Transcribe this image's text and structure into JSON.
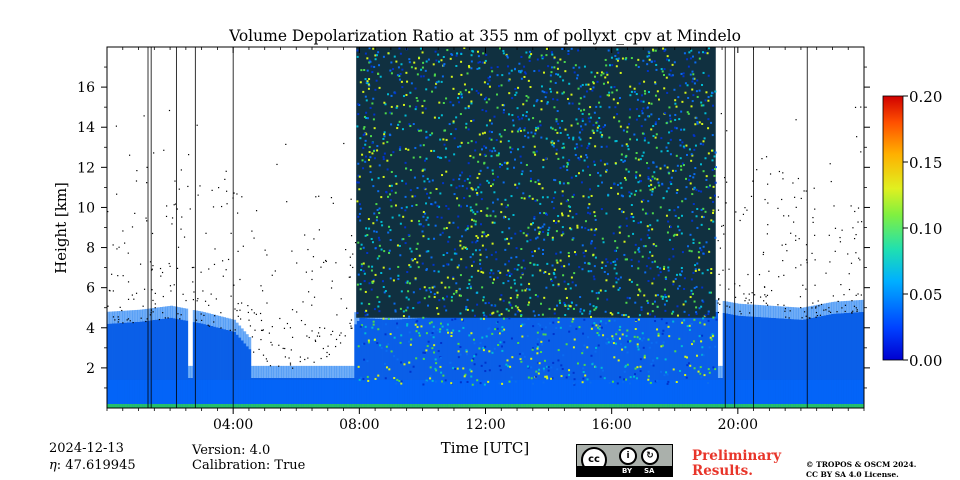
{
  "chart_data": {
    "type": "heatmap",
    "title": "Volume Depolarization Ratio at 355 nm of pollyxt_cpv at Mindelo",
    "xlabel": "Time [UTC]",
    "ylabel": "Height [km]",
    "x_unit": "hours UTC",
    "xlim": [
      0,
      24
    ],
    "ylim": [
      0,
      18
    ],
    "x_ticks": [
      4,
      8,
      12,
      16,
      20
    ],
    "x_tick_labels": [
      "04:00",
      "08:00",
      "12:00",
      "16:00",
      "20:00"
    ],
    "y_ticks": [
      2,
      4,
      6,
      8,
      10,
      12,
      14,
      16
    ],
    "y_tick_labels": [
      "2",
      "4",
      "6",
      "8",
      "10",
      "12",
      "14",
      "16"
    ],
    "colorbar": {
      "range": [
        0.0,
        0.2
      ],
      "ticks": [
        "0.00",
        "0.05",
        "0.10",
        "0.15",
        "0.20"
      ],
      "colormap": "jet",
      "colors": [
        "#0033cc",
        "#0a6cf0",
        "#00bcd4",
        "#4cd94c",
        "#d6f51a",
        "#ffcc00",
        "#ff6a00",
        "#e01010"
      ]
    },
    "background_color": "#ffffff",
    "noise_region": {
      "start_hour": 7.9,
      "end_hour": 19.3,
      "top_km": 18
    },
    "gaps_hours": [
      [
        2.5,
        2.7
      ],
      [
        4.5,
        7.8
      ],
      [
        6.55,
        6.75
      ],
      [
        19.35,
        19.45
      ]
    ],
    "aerosol_layer_top_km": [
      [
        0,
        4.2
      ],
      [
        1,
        4.3
      ],
      [
        2,
        4.5
      ],
      [
        3,
        4.2
      ],
      [
        4,
        3.8
      ],
      [
        5,
        2.0
      ],
      [
        6,
        2.0
      ],
      [
        7,
        2.5
      ],
      [
        8,
        4.5
      ],
      [
        9,
        4.4
      ],
      [
        10,
        4.5
      ],
      [
        12,
        4.6
      ],
      [
        14,
        4.5
      ],
      [
        16,
        4.5
      ],
      [
        18,
        4.6
      ],
      [
        19.3,
        4.8
      ],
      [
        20,
        4.6
      ],
      [
        21,
        4.5
      ],
      [
        22,
        4.4
      ],
      [
        23,
        4.7
      ],
      [
        24,
        4.8
      ]
    ]
  },
  "footer": {
    "date": "2024-12-13",
    "eta_label": "η",
    "eta_value": ": 47.619945",
    "version": "Version: 4.0",
    "calibration": "Calibration: True",
    "preliminary_line1": "Preliminary",
    "preliminary_line2": "Results.",
    "copyright_line1": "© TROPOS & OSCM 2024.",
    "copyright_line2": "CC BY SA 4.0 License.",
    "license_badge": {
      "cc": "cc",
      "by": "BY",
      "sa": "SA"
    }
  }
}
